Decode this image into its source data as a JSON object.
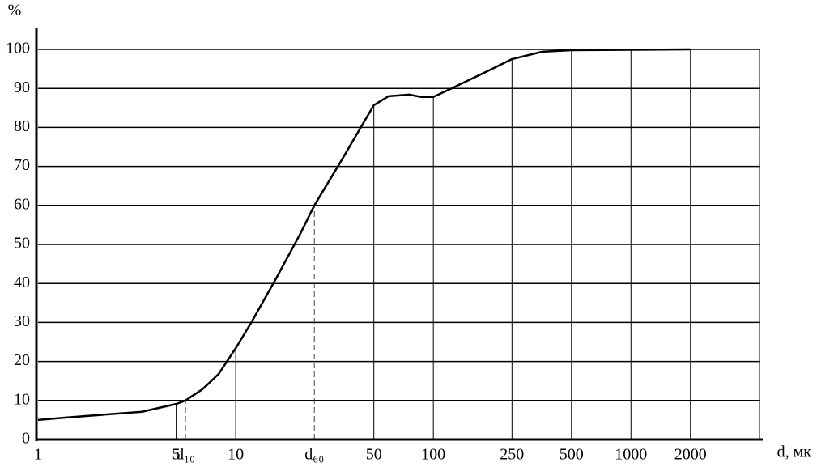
{
  "chart_data": {
    "type": "line",
    "x": [
      1,
      1.37,
      2.19,
      3.35,
      5,
      5.57,
      6.8,
      8.2,
      10,
      12,
      15.9,
      21.1,
      25,
      33.8,
      50,
      59.4,
      75.5,
      87,
      100,
      126,
      184,
      250,
      356,
      500,
      2000
    ],
    "values": [
      5,
      5.6,
      6.4,
      7.1,
      9.1,
      10,
      12.9,
      16.8,
      23.4,
      30,
      41,
      52.5,
      60,
      71,
      85.7,
      88,
      88.4,
      87.8,
      87.8,
      90.2,
      94.2,
      97.5,
      99.4,
      99.8,
      100
    ],
    "color": "#000000",
    "xlabel": "d, мк",
    "ylabel": "%",
    "xlog": true,
    "xlim": [
      1,
      4470
    ],
    "ylim": [
      0,
      100
    ],
    "xticks": [
      1,
      5,
      {
        "value": 5.57,
        "label": "d₁₀"
      },
      10,
      {
        "value": 25,
        "label": "d₆₀"
      },
      50,
      100,
      250,
      500,
      1000,
      2000
    ],
    "yticks": [
      0,
      10,
      20,
      30,
      40,
      50,
      60,
      70,
      80,
      90,
      100
    ],
    "grid": true
  }
}
